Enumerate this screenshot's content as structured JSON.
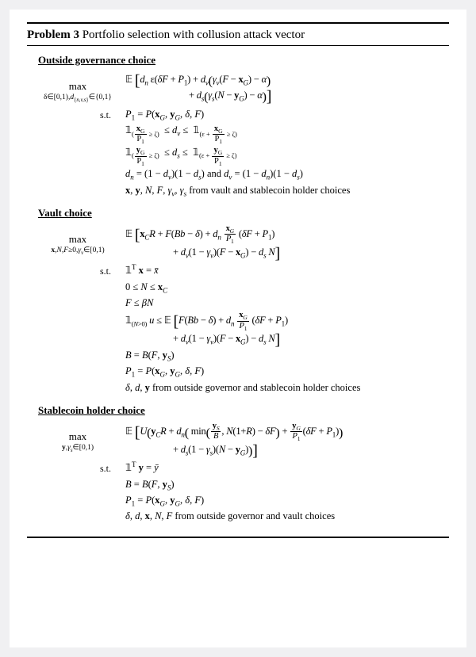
{
  "problem": {
    "label": "Problem 3",
    "title": "Portfolio selection with collusion attack vector"
  },
  "sections": {
    "outside": {
      "heading": "Outside governance choice",
      "maximizer": {
        "word": "max",
        "sub": "δ∈[0,1), d{n,v,s}∈{0,1}"
      },
      "obj1": "𝔼 [ dₙ ε(δF + P₁) + dᵥ (γᵥ (F − 𝐱G) − α)",
      "obj2": "+ dₛ (γₛ (N − 𝐲G) − α) ]",
      "stlabel": "s.t.",
      "c1": "P₁ = P(𝐱G, 𝐲G, δ, F)",
      "c2_left": "𝟙(𝐱G/P₁ ≥ ζ)",
      "c2_mid": "≤ dᵥ ≤",
      "c2_right": "𝟙(ε + 𝐱G/P₁ ≥ ζ)",
      "c3_left": "𝟙(𝐲G/P₁ ≥ ζ)",
      "c3_mid": "≤ dₛ ≤",
      "c3_right": "𝟙(ε + 𝐲G/P₁ ≥ ζ)",
      "c4": "dₙ = (1 − dᵥ)(1 − dₛ) and dᵥ = (1 − dₙ)(1 − dₛ)",
      "c5": "𝐱, 𝐲, N, F, γᵥ, γₛ from vault and stablecoin holder choices"
    },
    "vault": {
      "heading": "Vault choice",
      "maximizer": {
        "word": "max",
        "sub": "𝐱,N,F≥0, γᵥ∈[0,1)"
      },
      "obj1": "𝔼 [ 𝐱C R + F(Bb − δ) + dₙ (𝐱G/P₁)(δF + P₁)",
      "obj2": "+ dᵥ (1 − γᵥ)(F − 𝐱G) − dₛ N ]",
      "stlabel": "s.t.",
      "c1": "𝟙ᵀ 𝐱 = x̄",
      "c2": "0 ≤ N ≤ 𝐱C",
      "c3": "F ≤ βN",
      "c4a": "𝟙(N>0) u ≤ 𝔼 [ F(Bb − δ) + dₙ (𝐱G/P₁)(δF + P₁)",
      "c4b": "+ dᵥ (1 − γᵥ)(F − 𝐱G) − dₛ N ]",
      "c5": "B = B(F, 𝐲S)",
      "c6": "P₁ = P(𝐱G, 𝐲G, δ, F)",
      "c7": "δ, d, 𝐲 from outside governor and stablecoin holder choices"
    },
    "stable": {
      "heading": "Stablecoin holder choice",
      "maximizer": {
        "word": "max",
        "sub": "𝐲, γₛ∈[0,1)"
      },
      "obj1": "𝔼 [ U ( 𝐲C R + dₙ ( min(𝐲S/B, N(1+R) − δF) + (𝐲G/P₁)(δF + P₁) )",
      "obj2": "+ dₛ (1 − γₛ)(N − 𝐲G) ) ]",
      "stlabel": "s.t.",
      "c1": "𝟙ᵀ 𝐲 = ȳ",
      "c2": "B = B(F, 𝐲S)",
      "c3": "P₁ = P(𝐱G, 𝐲G, δ, F)",
      "c4": "δ, d, 𝐱, N, F from outside governor and vault choices"
    }
  }
}
